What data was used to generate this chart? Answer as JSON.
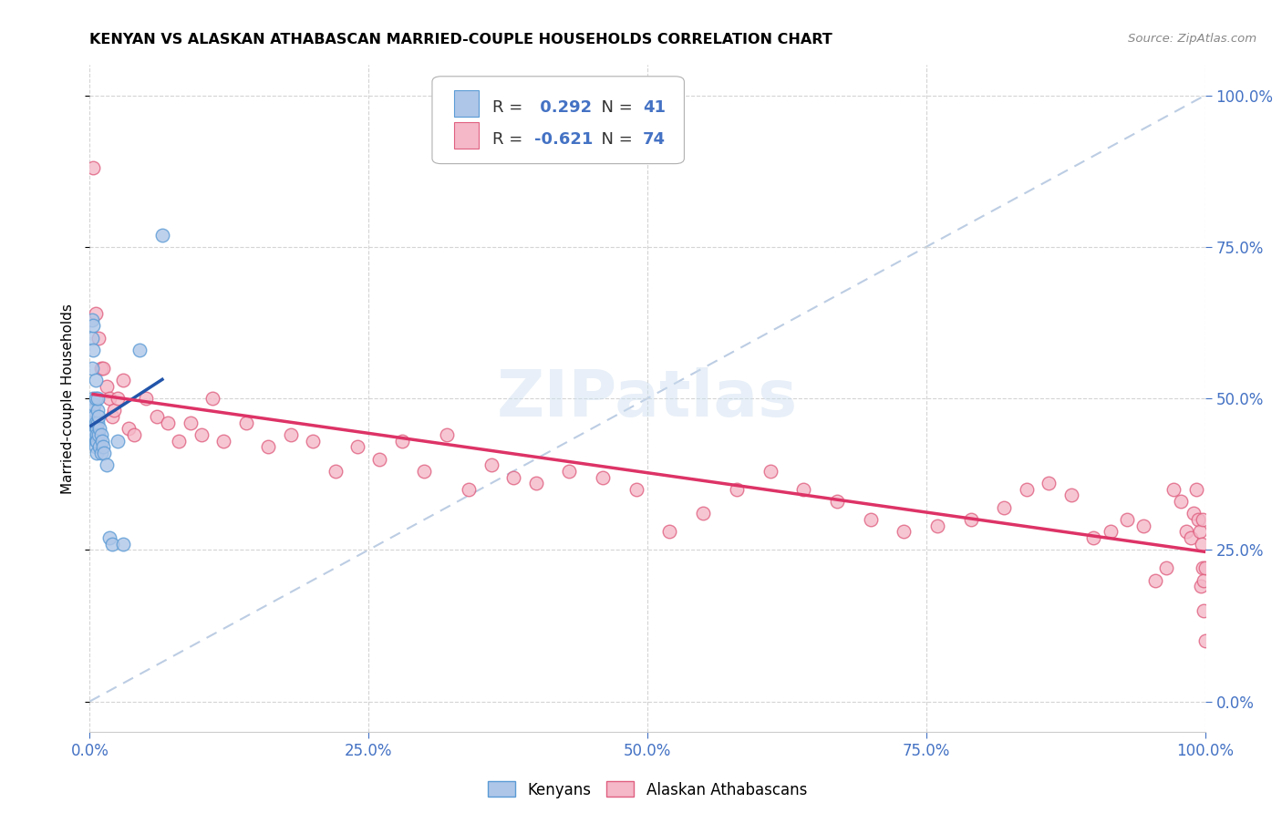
{
  "title": "KENYAN VS ALASKAN ATHABASCAN MARRIED-COUPLE HOUSEHOLDS CORRELATION CHART",
  "source": "Source: ZipAtlas.com",
  "ylabel": "Married-couple Households",
  "background_color": "#ffffff",
  "grid_color": "#d0d0d0",
  "kenyan_color": "#aec6e8",
  "kenyan_edge_color": "#5b9bd5",
  "athabascan_color": "#f4b8c8",
  "athabascan_edge_color": "#e06080",
  "kenyan_line_color": "#2255aa",
  "athabascan_line_color": "#dd3366",
  "diagonal_color": "#a0b8d8",
  "kenyan_R": 0.292,
  "kenyan_N": 41,
  "athabascan_R": -0.621,
  "athabascan_N": 74,
  "xmin": 0.0,
  "xmax": 1.0,
  "ymin": -0.05,
  "ymax": 1.05,
  "kenyan_x": [
    0.001,
    0.001,
    0.002,
    0.002,
    0.002,
    0.003,
    0.003,
    0.003,
    0.003,
    0.004,
    0.004,
    0.004,
    0.004,
    0.005,
    0.005,
    0.005,
    0.005,
    0.005,
    0.006,
    0.006,
    0.006,
    0.006,
    0.007,
    0.007,
    0.007,
    0.008,
    0.008,
    0.009,
    0.009,
    0.01,
    0.01,
    0.011,
    0.012,
    0.013,
    0.015,
    0.018,
    0.02,
    0.025,
    0.03,
    0.045,
    0.065
  ],
  "kenyan_y": [
    0.44,
    0.47,
    0.6,
    0.63,
    0.55,
    0.58,
    0.62,
    0.48,
    0.5,
    0.46,
    0.49,
    0.44,
    0.47,
    0.43,
    0.46,
    0.5,
    0.53,
    0.42,
    0.45,
    0.41,
    0.44,
    0.43,
    0.46,
    0.48,
    0.5,
    0.44,
    0.47,
    0.42,
    0.45,
    0.41,
    0.44,
    0.43,
    0.42,
    0.41,
    0.39,
    0.27,
    0.26,
    0.43,
    0.26,
    0.58,
    0.77
  ],
  "athabascan_x": [
    0.003,
    0.005,
    0.008,
    0.01,
    0.012,
    0.015,
    0.018,
    0.02,
    0.022,
    0.025,
    0.03,
    0.035,
    0.04,
    0.05,
    0.06,
    0.07,
    0.08,
    0.09,
    0.1,
    0.11,
    0.12,
    0.14,
    0.16,
    0.18,
    0.2,
    0.22,
    0.24,
    0.26,
    0.28,
    0.3,
    0.32,
    0.34,
    0.36,
    0.38,
    0.4,
    0.43,
    0.46,
    0.49,
    0.52,
    0.55,
    0.58,
    0.61,
    0.64,
    0.67,
    0.7,
    0.73,
    0.76,
    0.79,
    0.82,
    0.84,
    0.86,
    0.88,
    0.9,
    0.915,
    0.93,
    0.945,
    0.955,
    0.965,
    0.972,
    0.978,
    0.983,
    0.987,
    0.99,
    0.992,
    0.994,
    0.995,
    0.996,
    0.997,
    0.998,
    0.998,
    0.999,
    0.999,
    1.0,
    1.0
  ],
  "athabascan_y": [
    0.88,
    0.64,
    0.6,
    0.55,
    0.55,
    0.52,
    0.5,
    0.47,
    0.48,
    0.5,
    0.53,
    0.45,
    0.44,
    0.5,
    0.47,
    0.46,
    0.43,
    0.46,
    0.44,
    0.5,
    0.43,
    0.46,
    0.42,
    0.44,
    0.43,
    0.38,
    0.42,
    0.4,
    0.43,
    0.38,
    0.44,
    0.35,
    0.39,
    0.37,
    0.36,
    0.38,
    0.37,
    0.35,
    0.28,
    0.31,
    0.35,
    0.38,
    0.35,
    0.33,
    0.3,
    0.28,
    0.29,
    0.3,
    0.32,
    0.35,
    0.36,
    0.34,
    0.27,
    0.28,
    0.3,
    0.29,
    0.2,
    0.22,
    0.35,
    0.33,
    0.28,
    0.27,
    0.31,
    0.35,
    0.3,
    0.28,
    0.19,
    0.26,
    0.22,
    0.3,
    0.2,
    0.15,
    0.1,
    0.22
  ]
}
